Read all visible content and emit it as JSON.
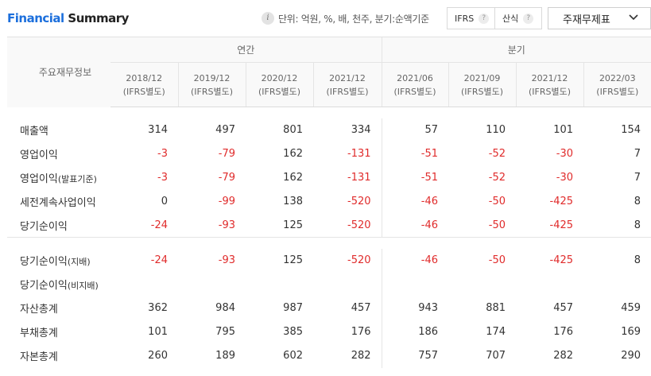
{
  "header": {
    "title_accent": "Financial",
    "title_rest": "Summary",
    "info_icon": "i",
    "unit_text": "단위: 억원, %, 배, 천주, 분기:순액기준",
    "toggle_ifrs": "IFRS",
    "toggle_calc": "산식",
    "help_glyph": "?",
    "select_value": "주재무제표"
  },
  "table": {
    "item_header": "주요재무정보",
    "group_annual": "연간",
    "group_quarter": "분기",
    "periods": [
      {
        "date": "2018/12",
        "basis": "(IFRS별도)"
      },
      {
        "date": "2019/12",
        "basis": "(IFRS별도)"
      },
      {
        "date": "2020/12",
        "basis": "(IFRS별도)"
      },
      {
        "date": "2021/12",
        "basis": "(IFRS별도)"
      },
      {
        "date": "2021/06",
        "basis": "(IFRS별도)"
      },
      {
        "date": "2021/09",
        "basis": "(IFRS별도)"
      },
      {
        "date": "2021/12",
        "basis": "(IFRS별도)"
      },
      {
        "date": "2022/03",
        "basis": "(IFRS별도)"
      }
    ],
    "rows": [
      {
        "label": "매출액",
        "sub": "",
        "values": [
          "314",
          "497",
          "801",
          "334",
          "57",
          "110",
          "101",
          "154"
        ]
      },
      {
        "label": "영업이익",
        "sub": "",
        "values": [
          "-3",
          "-79",
          "162",
          "-131",
          "-51",
          "-52",
          "-30",
          "7"
        ]
      },
      {
        "label": "영업이익",
        "sub": "(발표기준)",
        "values": [
          "-3",
          "-79",
          "162",
          "-131",
          "-51",
          "-52",
          "-30",
          "7"
        ]
      },
      {
        "label": "세전계속사업이익",
        "sub": "",
        "values": [
          "0",
          "-99",
          "138",
          "-520",
          "-46",
          "-50",
          "-425",
          "8"
        ]
      },
      {
        "label": "당기순이익",
        "sub": "",
        "values": [
          "-24",
          "-93",
          "125",
          "-520",
          "-46",
          "-50",
          "-425",
          "8"
        ]
      },
      {
        "label": "당기순이익",
        "sub": "(지배)",
        "values": [
          "-24",
          "-93",
          "125",
          "-520",
          "-46",
          "-50",
          "-425",
          "8"
        ]
      },
      {
        "label": "당기순이익",
        "sub": "(비지배)",
        "values": [
          "",
          "",
          "",
          "",
          "",
          "",
          "",
          ""
        ]
      },
      {
        "label": "자산총계",
        "sub": "",
        "values": [
          "362",
          "984",
          "987",
          "457",
          "943",
          "881",
          "457",
          "459"
        ]
      },
      {
        "label": "부채총계",
        "sub": "",
        "values": [
          "101",
          "795",
          "385",
          "176",
          "186",
          "174",
          "176",
          "169"
        ]
      },
      {
        "label": "자본총계",
        "sub": "",
        "values": [
          "260",
          "189",
          "602",
          "282",
          "757",
          "707",
          "282",
          "290"
        ]
      }
    ]
  },
  "colors": {
    "accent": "#1c6fdc",
    "negative": "#e02b2b"
  }
}
